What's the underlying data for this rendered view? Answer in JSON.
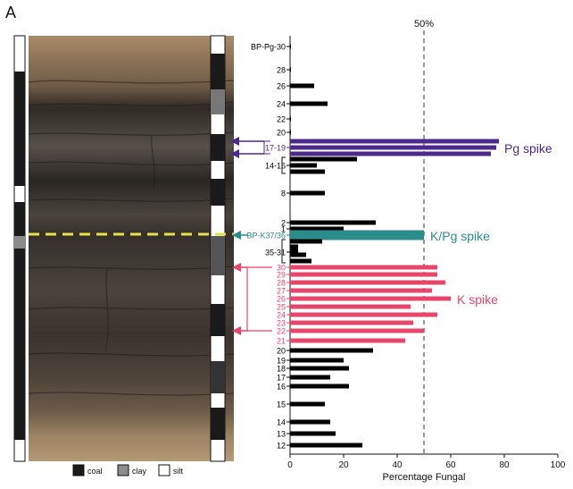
{
  "figure": {
    "panel_label": "A",
    "legend": {
      "title": "",
      "items": [
        {
          "label": "coal",
          "color": "#1a1a1a"
        },
        {
          "label": "clay",
          "color": "#8c8c8c"
        },
        {
          "label": "silt",
          "color": "#ffffff"
        }
      ]
    }
  },
  "chart_data": {
    "type": "bar",
    "orientation": "horizontal",
    "title": "",
    "xlabel": "Percentage Fungal",
    "ylabel": "",
    "xlim": [
      0,
      100
    ],
    "xticks": [
      0,
      20,
      40,
      60,
      80,
      100
    ],
    "reference_line": {
      "value": 50,
      "label": "50%",
      "style": "dashed"
    },
    "colors": {
      "default": "#000000",
      "pg": "#4b2a8c",
      "kpg": "#2b8c8c",
      "k": "#e8456b"
    },
    "categories": [
      "BP-Pg-30",
      "28",
      "26",
      "24",
      "22",
      "20",
      "19",
      "18",
      "17",
      "16",
      "15",
      "14",
      "8",
      "2",
      "1",
      "BP-K37/36",
      "35",
      "34",
      "33",
      "32",
      "31",
      "30",
      "29",
      "28",
      "27",
      "26",
      "25",
      "24",
      "23",
      "22",
      "21",
      "20",
      "19",
      "18",
      "17",
      "16",
      "15",
      "14",
      "13",
      "12"
    ],
    "values": [
      0.3,
      0.3,
      9,
      14,
      0.3,
      0.3,
      78,
      77,
      75,
      25,
      10,
      13,
      13,
      32,
      20,
      50,
      12,
      3,
      3,
      6,
      8,
      55,
      55,
      58,
      53,
      60,
      45,
      55,
      46,
      50,
      43,
      31,
      20,
      22,
      15,
      22,
      13,
      15,
      17,
      27
    ],
    "groups": [
      "default",
      "default",
      "default",
      "default",
      "default",
      "default",
      "pg",
      "pg",
      "pg",
      "default",
      "default",
      "default",
      "default",
      "default",
      "default",
      "kpg",
      "default",
      "default",
      "default",
      "default",
      "default",
      "k",
      "k",
      "k",
      "k",
      "k",
      "k",
      "k",
      "k",
      "k",
      "k",
      "default",
      "default",
      "default",
      "default",
      "default",
      "default",
      "default",
      "default",
      "default"
    ],
    "tick_labels": [
      {
        "text": "BP-Pg-30",
        "group": "default"
      },
      {
        "text": "28",
        "group": "default"
      },
      {
        "text": "26",
        "group": "default"
      },
      {
        "text": "24",
        "group": "default"
      },
      {
        "text": "22",
        "group": "default"
      },
      {
        "text": "20",
        "group": "default"
      },
      {
        "text": "17-19",
        "group": "pg"
      },
      {
        "text": "14-16",
        "group": "default"
      },
      {
        "text": "8",
        "group": "default"
      },
      {
        "text": "2",
        "group": "default"
      },
      {
        "text": "1",
        "group": "default"
      },
      {
        "text": "BP-K37/36",
        "group": "kpg"
      },
      {
        "text": "35-31",
        "group": "default"
      },
      {
        "text": "30",
        "group": "k"
      },
      {
        "text": "29",
        "group": "k"
      },
      {
        "text": "28",
        "group": "k"
      },
      {
        "text": "27",
        "group": "k"
      },
      {
        "text": "26",
        "group": "k"
      },
      {
        "text": "25",
        "group": "k"
      },
      {
        "text": "24",
        "group": "k"
      },
      {
        "text": "23",
        "group": "k"
      },
      {
        "text": "22",
        "group": "k"
      },
      {
        "text": "21",
        "group": "k"
      },
      {
        "text": "20",
        "group": "default"
      },
      {
        "text": "19",
        "group": "default"
      },
      {
        "text": "18",
        "group": "default"
      },
      {
        "text": "17",
        "group": "default"
      },
      {
        "text": "16",
        "group": "default"
      },
      {
        "text": "15",
        "group": "default"
      },
      {
        "text": "14",
        "group": "default"
      },
      {
        "text": "13",
        "group": "default"
      },
      {
        "text": "12",
        "group": "default"
      }
    ],
    "annotations": [
      {
        "text": "Pg spike",
        "group": "pg"
      },
      {
        "text": "K/Pg spike",
        "group": "kpg"
      },
      {
        "text": "K spike",
        "group": "k"
      }
    ]
  }
}
